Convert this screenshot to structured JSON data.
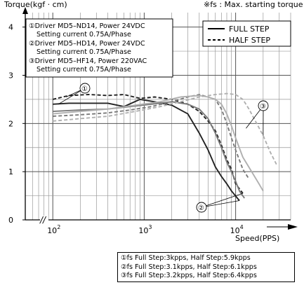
{
  "chart_data": {
    "type": "line",
    "ylabel": "Torque(kgf · cm)",
    "xlabel": "Speed(PPS)",
    "top_note": "※fs : Max. starting torque",
    "x_scale": "log",
    "xlim": [
      50,
      40000
    ],
    "ylim": [
      0,
      4.3
    ],
    "y_ticks": [
      "0",
      "1",
      "2",
      "3",
      "4"
    ],
    "x_ticks": [
      {
        "base": "10",
        "exp": "2",
        "value": 100
      },
      {
        "base": "10",
        "exp": "3",
        "value": 1000
      },
      {
        "base": "10",
        "exp": "4",
        "value": 10000
      }
    ],
    "grid": true,
    "axis_break": "//",
    "legend_placement": "top-right",
    "legend": [
      {
        "name": "FULL STEP",
        "dash": "solid"
      },
      {
        "name": "HALF STEP",
        "dash": "dashed"
      }
    ],
    "driver_box": [
      "①Driver MD5–ND14, Power 24VDC",
      "Setting current 0.75A/Phase",
      "②Driver MD5–HD14, Power 24VDC",
      "Setting current 0.75A/Phase",
      "③Driver MD5–HF14, Power 220VAC",
      "Setting current 0.75A/Phase"
    ],
    "callouts": [
      "①",
      "②",
      "③"
    ],
    "series": [
      {
        "name": "FULL STEP",
        "driver": "①",
        "color": "#222222",
        "dash": "solid",
        "x": [
          100,
          150,
          250,
          400,
          600,
          900,
          1300,
          2000,
          3000,
          4000,
          5000,
          6000,
          7000,
          8000,
          9000,
          11000
        ],
        "y": [
          2.4,
          2.42,
          2.42,
          2.42,
          2.35,
          2.5,
          2.45,
          2.38,
          2.2,
          1.8,
          1.45,
          1.1,
          0.9,
          0.75,
          0.6,
          0.4
        ]
      },
      {
        "name": "HALF STEP",
        "driver": "①",
        "color": "#222222",
        "dash": "dashed",
        "x": [
          100,
          150,
          250,
          400,
          600,
          900,
          1300,
          2000,
          3000,
          4000,
          5000,
          6000,
          7000,
          8000,
          9000,
          10000,
          12000
        ],
        "y": [
          2.5,
          2.58,
          2.6,
          2.58,
          2.6,
          2.52,
          2.55,
          2.5,
          2.4,
          2.25,
          2.05,
          1.85,
          1.55,
          1.25,
          1.05,
          0.75,
          0.55
        ]
      },
      {
        "name": "FULL STEP",
        "driver": "②",
        "color": "#7a7a7a",
        "dash": "solid",
        "x": [
          100,
          200,
          400,
          700,
          1200,
          2000,
          3000,
          4000,
          5000,
          6000,
          7000,
          8000,
          9000,
          10000,
          11000,
          12500
        ],
        "y": [
          2.25,
          2.28,
          2.3,
          2.35,
          2.4,
          2.45,
          2.4,
          2.3,
          2.1,
          1.8,
          1.5,
          1.2,
          1.0,
          0.8,
          0.6,
          0.45
        ]
      },
      {
        "name": "HALF STEP",
        "driver": "②",
        "color": "#7a7a7a",
        "dash": "dashed",
        "x": [
          100,
          200,
          400,
          700,
          1200,
          2000,
          3000,
          4000,
          5000,
          6000,
          7000,
          8000,
          9000,
          10000,
          12000,
          14000
        ],
        "y": [
          2.15,
          2.18,
          2.22,
          2.28,
          2.35,
          2.45,
          2.55,
          2.6,
          2.55,
          2.5,
          2.3,
          2.0,
          1.7,
          1.45,
          1.05,
          0.85
        ]
      },
      {
        "name": "FULL STEP",
        "driver": "③",
        "color": "#b0b0b0",
        "dash": "solid",
        "x": [
          100,
          200,
          400,
          800,
          1500,
          2500,
          4000,
          5000,
          6000,
          7000,
          8000,
          9000,
          10000,
          12000,
          15000,
          18000,
          20000
        ],
        "y": [
          2.2,
          2.25,
          2.3,
          2.38,
          2.45,
          2.55,
          2.58,
          2.55,
          2.5,
          2.4,
          2.2,
          1.95,
          1.7,
          1.3,
          1.0,
          0.75,
          0.6
        ]
      },
      {
        "name": "HALF STEP",
        "driver": "③",
        "color": "#b0b0b0",
        "dash": "dashed",
        "x": [
          100,
          200,
          400,
          800,
          1500,
          2500,
          4000,
          6000,
          8000,
          10000,
          12000,
          14000,
          17000,
          20000,
          24000,
          28000
        ],
        "y": [
          2.05,
          2.1,
          2.15,
          2.25,
          2.35,
          2.45,
          2.55,
          2.6,
          2.62,
          2.6,
          2.5,
          2.3,
          2.0,
          1.75,
          1.4,
          1.15
        ]
      }
    ],
    "fs_notes": [
      "①fs Full Step:3kpps, Half Step:5.9kpps",
      "②fs Full Step:3.1kpps, Half Step:6.1kpps",
      "③fs Full Step:3.2kpps, Half Step:6.4kpps"
    ]
  }
}
